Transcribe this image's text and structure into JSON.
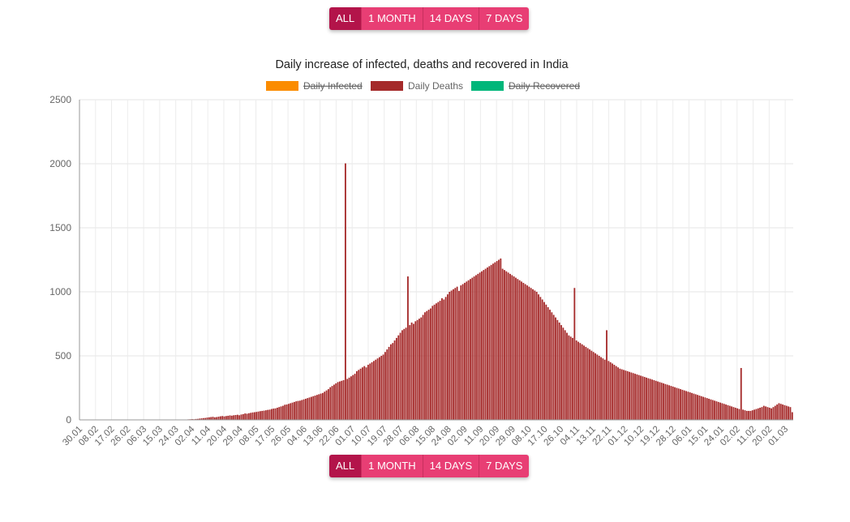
{
  "range_buttons": {
    "all": "ALL",
    "one_month": "1 MONTH",
    "fourteen_days": "14 DAYS",
    "seven_days": "7 DAYS",
    "selected": "ALL"
  },
  "chart_data": {
    "type": "bar",
    "title": "Daily increase of infected, deaths and recovered in India",
    "legend_position": "top",
    "legend": [
      {
        "name": "Daily Infected",
        "color": "#fb8c00",
        "hidden": true
      },
      {
        "name": "Daily Deaths",
        "color": "#a52a2a",
        "hidden": false
      },
      {
        "name": "Daily Recovered",
        "color": "#00b67a",
        "hidden": true
      }
    ],
    "ylim": [
      0,
      2500
    ],
    "y_ticks": [
      "0",
      "500",
      "1000",
      "1500",
      "2000",
      "2500"
    ],
    "grid": true,
    "x_ticks": [
      "30.01",
      "08.02",
      "17.02",
      "26.02",
      "06.03",
      "15.03",
      "24.03",
      "02.04",
      "11.04",
      "20.04",
      "29.04",
      "08.05",
      "17.05",
      "26.05",
      "04.06",
      "13.06",
      "22.06",
      "01.07",
      "10.07",
      "19.07",
      "28.07",
      "06.08",
      "15.08",
      "24.08",
      "02.09",
      "11.09",
      "20.09",
      "29.09",
      "08.10",
      "17.10",
      "26.10",
      "04.11",
      "13.11",
      "22.11",
      "01.12",
      "10.12",
      "19.12",
      "28.12",
      "06.01",
      "15.01",
      "24.01",
      "02.02",
      "11.02",
      "20.02",
      "01.03"
    ],
    "series": [
      {
        "name": "Daily Deaths",
        "color": "#a52a2a",
        "start_date": "30.01",
        "values": [
          0,
          0,
          0,
          0,
          0,
          0,
          0,
          0,
          0,
          0,
          0,
          0,
          0,
          0,
          0,
          0,
          0,
          0,
          0,
          0,
          0,
          0,
          0,
          0,
          0,
          0,
          0,
          0,
          0,
          0,
          0,
          0,
          0,
          0,
          0,
          0,
          0,
          0,
          0,
          0,
          0,
          1,
          0,
          0,
          0,
          1,
          0,
          0,
          1,
          1,
          1,
          2,
          2,
          3,
          2,
          3,
          3,
          4,
          5,
          6,
          5,
          7,
          8,
          10,
          12,
          14,
          15,
          18,
          20,
          22,
          24,
          20,
          22,
          25,
          28,
          30,
          27,
          30,
          32,
          35,
          33,
          36,
          38,
          40,
          36,
          42,
          45,
          50,
          48,
          52,
          55,
          58,
          60,
          62,
          65,
          68,
          70,
          72,
          75,
          78,
          80,
          85,
          88,
          90,
          95,
          100,
          105,
          110,
          118,
          120,
          125,
          130,
          135,
          140,
          145,
          148,
          150,
          155,
          160,
          165,
          170,
          175,
          180,
          185,
          190,
          195,
          200,
          205,
          210,
          220,
          230,
          240,
          255,
          265,
          275,
          285,
          295,
          300,
          305,
          310,
          2003,
          320,
          330,
          340,
          350,
          360,
          380,
          390,
          400,
          410,
          420,
          410,
          430,
          440,
          450,
          460,
          470,
          480,
          490,
          500,
          510,
          530,
          550,
          570,
          590,
          600,
          620,
          640,
          660,
          680,
          700,
          710,
          720,
          1120,
          740,
          760,
          750,
          770,
          780,
          790,
          800,
          820,
          840,
          850,
          860,
          870,
          890,
          900,
          910,
          920,
          930,
          950,
          940,
          960,
          980,
          1000,
          1010,
          1020,
          1030,
          1040,
          1007,
          1050,
          1060,
          1070,
          1080,
          1090,
          1100,
          1110,
          1120,
          1130,
          1140,
          1150,
          1160,
          1170,
          1180,
          1190,
          1200,
          1210,
          1220,
          1230,
          1240,
          1250,
          1260,
          1180,
          1170,
          1160,
          1150,
          1140,
          1130,
          1120,
          1110,
          1100,
          1090,
          1080,
          1070,
          1060,
          1050,
          1040,
          1030,
          1020,
          1010,
          1000,
          980,
          960,
          940,
          920,
          900,
          880,
          860,
          840,
          820,
          800,
          780,
          760,
          740,
          720,
          700,
          680,
          660,
          650,
          640,
          1030,
          620,
          610,
          600,
          590,
          580,
          570,
          560,
          550,
          540,
          530,
          520,
          510,
          500,
          490,
          480,
          470,
          700,
          460,
          450,
          440,
          430,
          420,
          410,
          400,
          395,
          390,
          385,
          380,
          375,
          370,
          365,
          360,
          355,
          350,
          345,
          340,
          335,
          330,
          325,
          320,
          315,
          310,
          305,
          300,
          295,
          290,
          285,
          280,
          275,
          270,
          265,
          260,
          255,
          250,
          245,
          240,
          235,
          230,
          225,
          220,
          215,
          210,
          205,
          200,
          195,
          190,
          185,
          180,
          175,
          170,
          165,
          160,
          155,
          150,
          145,
          140,
          135,
          130,
          125,
          120,
          115,
          110,
          105,
          100,
          95,
          90,
          85,
          405,
          80,
          75,
          70,
          70,
          70,
          75,
          80,
          85,
          90,
          95,
          100,
          110,
          105,
          100,
          95,
          90,
          100,
          110,
          120,
          130,
          125,
          120,
          115,
          110,
          105,
          100,
          60
        ]
      }
    ]
  }
}
